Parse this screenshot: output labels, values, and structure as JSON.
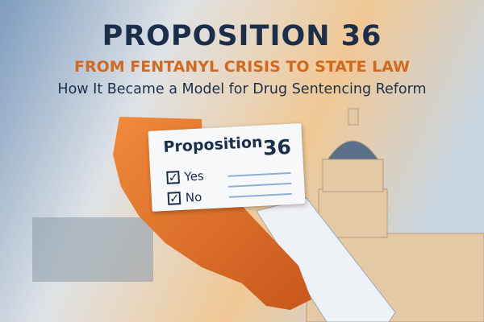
{
  "title": "PROPOSITION 36",
  "subtitle": "FROM FENTANYL CRISIS TO STATE LAW",
  "tagline": "How It Became a Model for Drug Sentencing Reform",
  "ballot": {
    "title": "Proposition",
    "number": "36",
    "options": [
      {
        "label": "Yes",
        "checked": true
      },
      {
        "label": "No",
        "checked": true
      }
    ]
  },
  "colors": {
    "navy": "#1c2f4a",
    "orange": "#d2691e",
    "state": "#e07a2e"
  },
  "icons": [
    "checkbox-checked-icon"
  ]
}
